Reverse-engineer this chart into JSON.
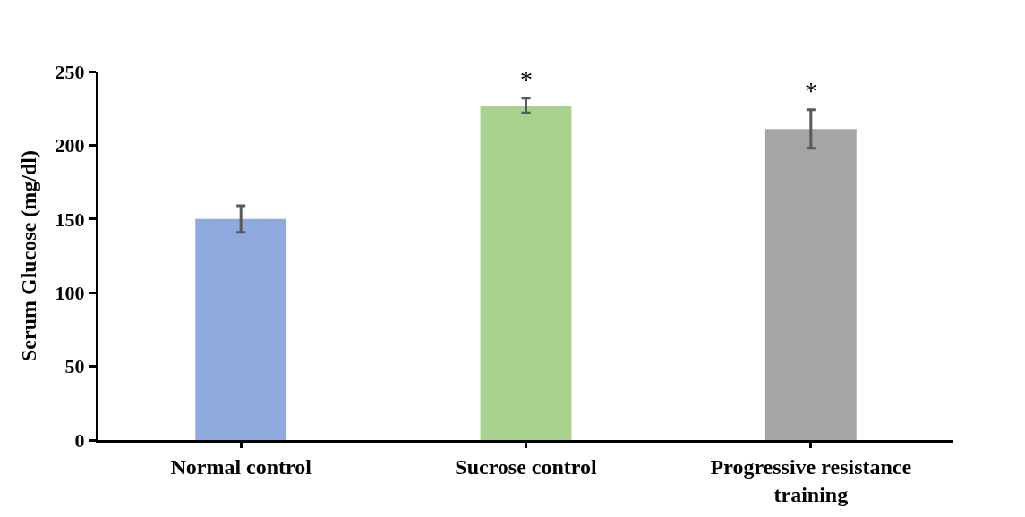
{
  "chart_data": {
    "type": "bar",
    "ylabel": "Serum Glucose (mg/dl)",
    "categories": [
      "Normal control",
      "Sucrose control",
      "Progressive resistance training"
    ],
    "values": [
      150,
      227,
      211
    ],
    "colors": [
      "#8faadc",
      "#a9d18e",
      "#a5a5a5"
    ],
    "errors": [
      9,
      5,
      13
    ],
    "ylim": [
      0,
      250
    ],
    "yticks": [
      0,
      50,
      100,
      150,
      200,
      250
    ],
    "value_labels": [
      null,
      "*",
      "*"
    ]
  }
}
